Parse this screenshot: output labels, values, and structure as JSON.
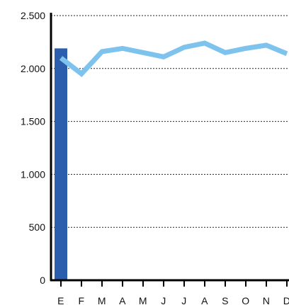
{
  "chart_data": {
    "type": "bar+line",
    "title": "",
    "xlabel": "",
    "ylabel": "",
    "categories": [
      "E",
      "F",
      "M",
      "A",
      "M",
      "J",
      "J",
      "A",
      "S",
      "O",
      "N",
      "D"
    ],
    "ylim": [
      0,
      2500
    ],
    "yticks": [
      {
        "value": 0,
        "label": "0"
      },
      {
        "value": 500,
        "label": "500"
      },
      {
        "value": 1000,
        "label": "1.000"
      },
      {
        "value": 1500,
        "label": "1.500"
      },
      {
        "value": 2000,
        "label": "2.000"
      },
      {
        "value": 2500,
        "label": "2.500"
      }
    ],
    "grid": "horizontal dotted",
    "series": [
      {
        "kind": "bar",
        "color": "#2b5fad",
        "values": [
          2190,
          null,
          null,
          null,
          null,
          null,
          null,
          null,
          null,
          null,
          null,
          null
        ]
      },
      {
        "kind": "line",
        "color": "#7ec3ee",
        "values": [
          2100,
          1950,
          2160,
          2190,
          2150,
          2110,
          2200,
          2240,
          2150,
          2190,
          2220,
          2140
        ]
      }
    ]
  }
}
